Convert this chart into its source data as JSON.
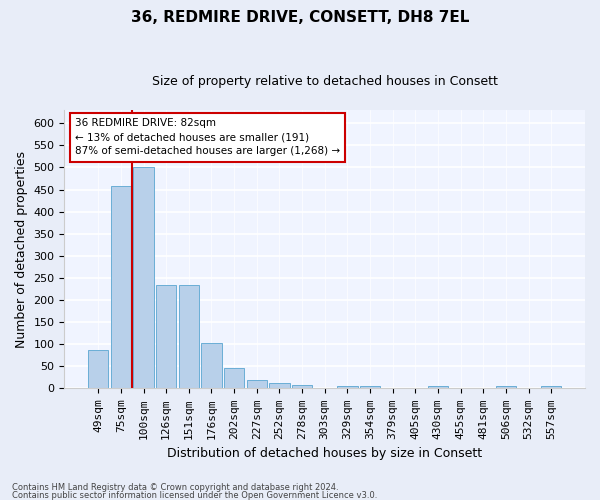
{
  "title": "36, REDMIRE DRIVE, CONSETT, DH8 7EL",
  "subtitle": "Size of property relative to detached houses in Consett",
  "xlabel": "Distribution of detached houses by size in Consett",
  "ylabel": "Number of detached properties",
  "footer1": "Contains HM Land Registry data © Crown copyright and database right 2024.",
  "footer2": "Contains public sector information licensed under the Open Government Licence v3.0.",
  "bins": [
    "49sqm",
    "75sqm",
    "100sqm",
    "126sqm",
    "151sqm",
    "176sqm",
    "202sqm",
    "227sqm",
    "252sqm",
    "278sqm",
    "303sqm",
    "329sqm",
    "354sqm",
    "379sqm",
    "405sqm",
    "430sqm",
    "455sqm",
    "481sqm",
    "506sqm",
    "532sqm",
    "557sqm"
  ],
  "bar_heights": [
    88,
    458,
    500,
    234,
    234,
    103,
    47,
    20,
    13,
    8,
    0,
    5,
    5,
    0,
    0,
    5,
    0,
    0,
    5,
    0,
    5
  ],
  "bar_color": "#b8d0ea",
  "bar_edgecolor": "#6aaed6",
  "vline_x": 1.5,
  "vline_color": "#cc0000",
  "annotation_text": "36 REDMIRE DRIVE: 82sqm\n← 13% of detached houses are smaller (191)\n87% of semi-detached houses are larger (1,268) →",
  "annotation_box_color": "white",
  "annotation_box_edgecolor": "#cc0000",
  "ylim": [
    0,
    630
  ],
  "yticks": [
    0,
    50,
    100,
    150,
    200,
    250,
    300,
    350,
    400,
    450,
    500,
    550,
    600
  ],
  "bg_color": "#e8edf8",
  "plot_bg_color": "#f0f4ff",
  "title_fontsize": 11,
  "subtitle_fontsize": 9,
  "xlabel_fontsize": 9,
  "ylabel_fontsize": 9,
  "tick_fontsize": 8,
  "footer_fontsize": 6
}
